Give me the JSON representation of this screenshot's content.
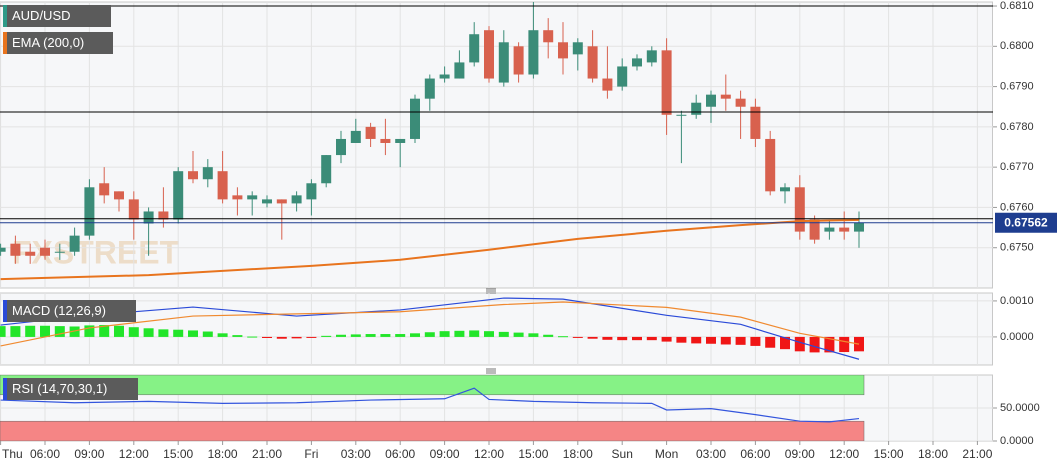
{
  "chart_data": [
    {
      "type": "candlestick",
      "title": "AUD/USD",
      "watermark": "FXSTREET",
      "categories": [
        "Thu",
        null,
        null,
        "06:00",
        null,
        null,
        "09:00",
        null,
        null,
        "12:00",
        null,
        null,
        "15:00",
        null,
        null,
        "18:00",
        null,
        null,
        "21:00",
        null,
        null,
        "Fri",
        null,
        null,
        "03:00",
        null,
        null,
        "06:00",
        null,
        null,
        "09:00",
        null,
        null,
        "12:00",
        null,
        null,
        "15:00",
        null,
        null,
        "18:00",
        null,
        null,
        "Sun",
        null,
        null,
        "Mon",
        null,
        null,
        "03:00",
        null,
        null,
        "06:00",
        null,
        null,
        "09:00",
        null,
        null,
        "12:00",
        null,
        null,
        "15:00",
        null,
        null,
        "18:00",
        null,
        null,
        "21:00"
      ],
      "open": [
        0.6749,
        0.6751,
        0.6749,
        0.675,
        0.6749,
        0.6749,
        0.6753,
        0.6766,
        0.6764,
        0.6762,
        0.6756,
        0.6759,
        0.6757,
        0.6769,
        0.6767,
        0.6769,
        0.6763,
        0.6762,
        0.6761,
        0.6762,
        0.6761,
        0.6762,
        0.6766,
        0.6773,
        0.6776,
        0.678,
        0.6777,
        0.6776,
        0.6777,
        0.6787,
        0.6792,
        0.6792,
        0.6796,
        0.6804,
        0.6791,
        0.68,
        0.6793,
        0.6804,
        0.6801,
        0.6798,
        0.68,
        0.6792,
        0.679,
        0.6795,
        0.6796,
        0.6799,
        0.6783,
        0.6783,
        0.6785,
        0.6788,
        0.6787,
        0.6785,
        0.6777,
        0.6764,
        0.6765,
        0.6757,
        0.6754,
        0.6755,
        0.6754,
        null,
        null,
        null,
        null,
        null,
        null,
        null,
        null
      ],
      "high": [
        0.6751,
        0.6753,
        0.6751,
        0.6752,
        0.6751,
        0.6755,
        0.6767,
        0.677,
        0.6764,
        0.6764,
        0.676,
        0.6765,
        0.677,
        0.6774,
        0.6772,
        0.6774,
        0.6765,
        0.6764,
        0.6763,
        0.6762,
        0.6764,
        0.6767,
        0.6773,
        0.6779,
        0.6782,
        0.6781,
        0.6782,
        0.6777,
        0.6788,
        0.6793,
        0.6795,
        0.6799,
        0.6806,
        0.6805,
        0.6804,
        0.6801,
        0.6811,
        0.6807,
        0.6806,
        0.6802,
        0.6804,
        0.68,
        0.6797,
        0.6798,
        0.68,
        0.6802,
        0.6784,
        0.6788,
        0.6789,
        0.6793,
        0.6789,
        0.6787,
        0.6779,
        0.6766,
        0.6768,
        0.6758,
        0.6757,
        0.6759,
        0.6759,
        null,
        null,
        null,
        null,
        null,
        null,
        null,
        null
      ],
      "low": [
        0.6748,
        0.6746,
        0.6746,
        0.6747,
        0.6747,
        0.6748,
        0.6752,
        0.6761,
        0.6759,
        0.6752,
        0.6748,
        0.6755,
        0.6756,
        0.6766,
        0.6765,
        0.6761,
        0.6758,
        0.6758,
        0.676,
        0.6752,
        0.6759,
        0.6758,
        0.6765,
        0.6771,
        0.6776,
        0.6775,
        0.6773,
        0.677,
        0.6776,
        0.6784,
        0.6791,
        0.6792,
        0.6795,
        0.6791,
        0.679,
        0.6791,
        0.6792,
        0.6797,
        0.6793,
        0.6794,
        0.6791,
        0.6787,
        0.6789,
        0.6794,
        0.6795,
        0.6778,
        0.6771,
        0.6782,
        0.6781,
        0.6784,
        0.6777,
        0.6775,
        0.6763,
        0.6761,
        0.6752,
        0.6751,
        0.6752,
        0.6752,
        0.675,
        null,
        null,
        null,
        null,
        null,
        null,
        null,
        null
      ],
      "close": [
        0.675,
        0.6748,
        0.6748,
        0.6748,
        0.6749,
        0.6753,
        0.6765,
        0.6763,
        0.6762,
        0.6757,
        0.6759,
        0.6757,
        0.6769,
        0.6767,
        0.677,
        0.6762,
        0.6762,
        0.6763,
        0.6762,
        0.6761,
        0.6763,
        0.6766,
        0.6773,
        0.6777,
        0.6779,
        0.6777,
        0.6776,
        0.6777,
        0.6787,
        0.6792,
        0.6793,
        0.6796,
        0.6803,
        0.6792,
        0.6801,
        0.6793,
        0.6804,
        0.6801,
        0.6797,
        0.6801,
        0.6792,
        0.6789,
        0.6795,
        0.6797,
        0.6799,
        0.6783,
        0.6783,
        0.6786,
        0.6788,
        0.6787,
        0.6785,
        0.6777,
        0.6764,
        0.6765,
        0.6754,
        0.6752,
        0.6755,
        0.6754,
        0.67562,
        null,
        null,
        null,
        null,
        null,
        null,
        null,
        null
      ],
      "up_color": "#3b8c78",
      "down_color": "#d8614e",
      "overlays": [
        {
          "name": "EMA (200,0)",
          "color": "#e8741e",
          "x": [
            0,
            10,
            21,
            27,
            33,
            39,
            45,
            50,
            54,
            58
          ],
          "values": [
            0.67422,
            0.67432,
            0.67455,
            0.6747,
            0.67495,
            0.67522,
            0.67542,
            0.67556,
            0.67566,
            0.67569
          ]
        }
      ],
      "levels": [
        0.681,
        0.67837,
        0.67572
      ],
      "level_color": "#000000",
      "last_price": 0.67562,
      "last_price_color": "#1e3d8f",
      "ylim": [
        0.674,
        0.6811
      ],
      "yticks": [
        {
          "value": 0.681,
          "label": "0.6810"
        },
        {
          "value": 0.68,
          "label": "0.6800"
        },
        {
          "value": 0.679,
          "label": "0.6790"
        },
        {
          "value": 0.678,
          "label": "0.6780"
        },
        {
          "value": 0.677,
          "label": "0.6770"
        },
        {
          "value": 0.676,
          "label": "0.6760"
        },
        {
          "value": 0.675,
          "label": "0.6750"
        }
      ],
      "grid": true
    },
    {
      "type": "macd",
      "title": "MACD (12,26,9)",
      "title_color": "#2a4ad8",
      "histogram": {
        "up_color": "#22e52a",
        "down_color": "#f01616",
        "values": [
          0.0003,
          0.0003,
          0.00031,
          0.00031,
          0.0003,
          0.00029,
          0.00032,
          0.00033,
          0.00031,
          0.00027,
          0.00024,
          0.00021,
          0.0002,
          0.00018,
          0.00015,
          0.0001,
          5e-05,
          1e-05,
          -3e-05,
          -5e-05,
          -4e-05,
          -2e-05,
          3e-05,
          6e-05,
          7e-05,
          8e-05,
          8e-05,
          8e-05,
          0.0001,
          0.00013,
          0.00016,
          0.00017,
          0.00018,
          0.00016,
          0.00014,
          0.00012,
          0.0001,
          6e-05,
          2e-05,
          -1e-05,
          -5e-05,
          -8e-05,
          -9e-05,
          -9e-05,
          -9e-05,
          -0.00013,
          -0.00016,
          -0.00018,
          -0.00019,
          -0.00021,
          -0.00022,
          -0.00025,
          -0.0003,
          -0.00034,
          -0.0004,
          -0.00043,
          -0.00043,
          -0.00042,
          -0.0004
        ]
      },
      "series": [
        {
          "color": "#2a4ad8",
          "x": [
            0,
            6,
            13,
            20,
            27,
            34,
            38,
            45,
            50,
            54,
            58
          ],
          "values": [
            0.00033,
            0.0006,
            0.00083,
            0.00058,
            0.00075,
            0.00108,
            0.00105,
            0.0006,
            0.00035,
            -0.00015,
            -0.00062
          ]
        },
        {
          "color": "#f08a30",
          "x": [
            0,
            6,
            13,
            20,
            27,
            34,
            38,
            45,
            50,
            54,
            58
          ],
          "values": [
            -0.00025,
            0.00025,
            0.00058,
            0.00064,
            0.0007,
            0.0009,
            0.00097,
            0.00082,
            0.00055,
            0.0001,
            -0.0002
          ]
        }
      ],
      "ylim": [
        -0.00078,
        0.00122
      ],
      "yticks": [
        {
          "value": 0.001,
          "label": "0.0010"
        },
        {
          "value": 0,
          "label": "0.0000"
        }
      ],
      "grid": true
    },
    {
      "type": "line",
      "title": "RSI (14,70,30,1)",
      "title_color": "#2a4ad8",
      "zones": [
        {
          "range": [
            70,
            100
          ],
          "color": "#86f286"
        },
        {
          "range": [
            0,
            30
          ],
          "color": "#f58585"
        }
      ],
      "series": [
        {
          "color": "#3355dd",
          "x": [
            0,
            5,
            10,
            15,
            20,
            25,
            30,
            32,
            33,
            36,
            40,
            44,
            45,
            48,
            51,
            54,
            56,
            58
          ],
          "values": [
            62,
            58,
            60,
            57,
            58,
            62,
            64,
            80,
            63,
            60,
            58,
            57,
            47,
            49,
            40,
            30,
            29,
            34
          ]
        }
      ],
      "ylim": [
        0,
        100
      ],
      "yticks": [
        {
          "value": 50,
          "label": "50.0000"
        },
        {
          "value": 0,
          "label": "0.0000"
        }
      ],
      "grid": true
    }
  ]
}
